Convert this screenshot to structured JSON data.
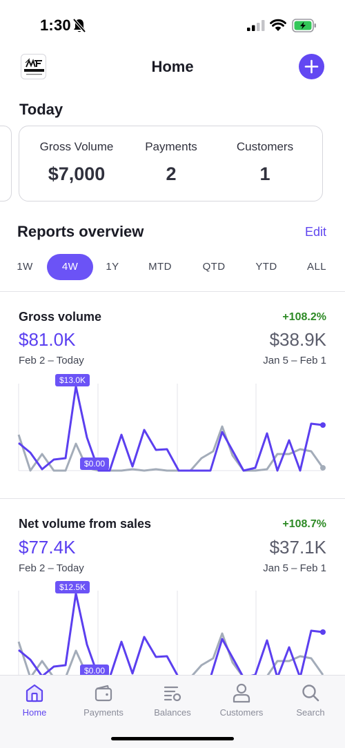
{
  "status_bar": {
    "time": "1:30"
  },
  "header": {
    "title": "Home",
    "logo_text": "MICHAEL SHEEDY"
  },
  "today": {
    "title": "Today",
    "metrics": [
      {
        "label": "Gross Volume",
        "value": "$7,000"
      },
      {
        "label": "Payments",
        "value": "2"
      },
      {
        "label": "Customers",
        "value": "1"
      }
    ]
  },
  "reports": {
    "title": "Reports overview",
    "edit_label": "Edit",
    "ranges": [
      "1W",
      "4W",
      "1Y",
      "MTD",
      "QTD",
      "YTD",
      "ALL"
    ],
    "selected_range": "4W"
  },
  "charts": [
    {
      "title": "Gross volume",
      "change": "+108.2%",
      "current_value": "$81.0K",
      "previous_value": "$38.9K",
      "current_range": "Feb 2 – Today",
      "previous_range": "Jan 5 – Feb 1",
      "max_label": "$13.0K",
      "min_label": "$0.00"
    },
    {
      "title": "Net volume from sales",
      "change": "+108.7%",
      "current_value": "$77.4K",
      "previous_value": "$37.1K",
      "current_range": "Feb 2 – Today",
      "previous_range": "Jan 5 – Feb 1",
      "max_label": "$12.5K",
      "min_label": "$0.00"
    }
  ],
  "series_colors": {
    "current": "#5b3fef",
    "previous": "#a3acb9"
  },
  "tabs": [
    {
      "label": "Home",
      "icon": "home-icon"
    },
    {
      "label": "Payments",
      "icon": "wallet-icon"
    },
    {
      "label": "Balances",
      "icon": "balances-icon"
    },
    {
      "label": "Customers",
      "icon": "person-icon"
    },
    {
      "label": "Search",
      "icon": "search-icon"
    }
  ],
  "active_tab": "Home"
}
